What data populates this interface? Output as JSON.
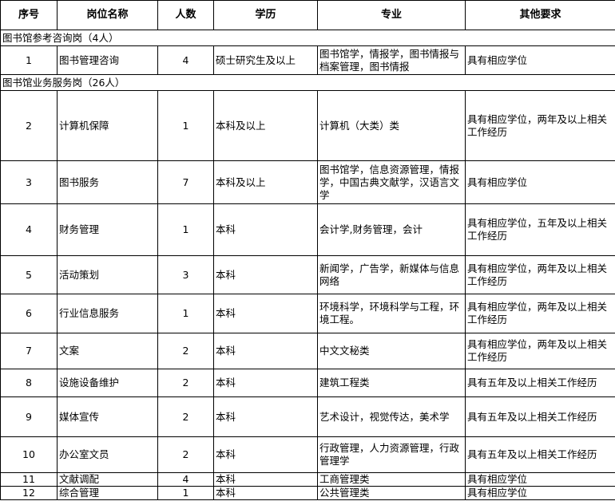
{
  "headers": [
    "序号",
    "岗位名称",
    "人数",
    "学历",
    "专业",
    "其他要求"
  ],
  "sections": [
    {
      "title": "图书馆参考咨询岗（4人）",
      "rows": [
        {
          "no": "1",
          "name": "图书管理咨询",
          "count": "4",
          "edu": "硕士研究生及以上",
          "major": "图书馆学，情报学，图书情报与档案管理，图书情报",
          "req": "具有相应学位"
        }
      ]
    },
    {
      "title": "图书馆业务服务岗（26人）",
      "rows": [
        {
          "no": "2",
          "name": "计算机保障",
          "count": "1",
          "edu": "本科及以上",
          "major": "计算机（大类）类",
          "req": "具有相应学位，两年及以上相关工作经历"
        },
        {
          "no": "3",
          "name": "图书服务",
          "count": "7",
          "edu": "本科及以上",
          "major": "图书馆学，信息资源管理，情报学，中国古典文献学，汉语言文学",
          "req": "具有相应学位"
        },
        {
          "no": "4",
          "name": "财务管理",
          "count": "1",
          "edu": "本科",
          "major": "会计学,财务管理，会计",
          "req": "具有相应学位，五年及以上相关工作经历"
        },
        {
          "no": "5",
          "name": "活动策划",
          "count": "3",
          "edu": "本科",
          "major": "新闻学，广告学，新媒体与信息网络",
          "req": "具有相应学位，两年及以上相关工作经历"
        },
        {
          "no": "6",
          "name": "行业信息服务",
          "count": "1",
          "edu": "本科",
          "major": "环境科学，环境科学与工程，环境工程。",
          "req": "具有相应学位，两年及以上相关工作经历"
        },
        {
          "no": "7",
          "name": "文案",
          "count": "2",
          "edu": "本科",
          "major": "中文文秘类",
          "req": "具有相应学位，两年及以上相关工作经历"
        },
        {
          "no": "8",
          "name": "设施设备维护",
          "count": "2",
          "edu": "本科",
          "major": "建筑工程类",
          "req": "具有五年及以上相关工作经历"
        },
        {
          "no": "9",
          "name": "媒体宣传",
          "count": "2",
          "edu": "本科",
          "major": "艺术设计，视觉传达，美术学",
          "req": "具有五年及以上相关工作经历"
        },
        {
          "no": "10",
          "name": "办公室文员",
          "count": "2",
          "edu": "本科",
          "major": "行政管理，人力资源管理，行政管理学",
          "req": "具有五年及以上相关工作经历"
        },
        {
          "no": "11",
          "name": "文献调配",
          "count": "4",
          "edu": "本科",
          "major": "工商管理类",
          "req": "具有相应学位"
        },
        {
          "no": "12",
          "name": "综合管理",
          "count": "1",
          "edu": "本科",
          "major": "公共管理类",
          "req": "具有相应学位"
        }
      ]
    }
  ]
}
